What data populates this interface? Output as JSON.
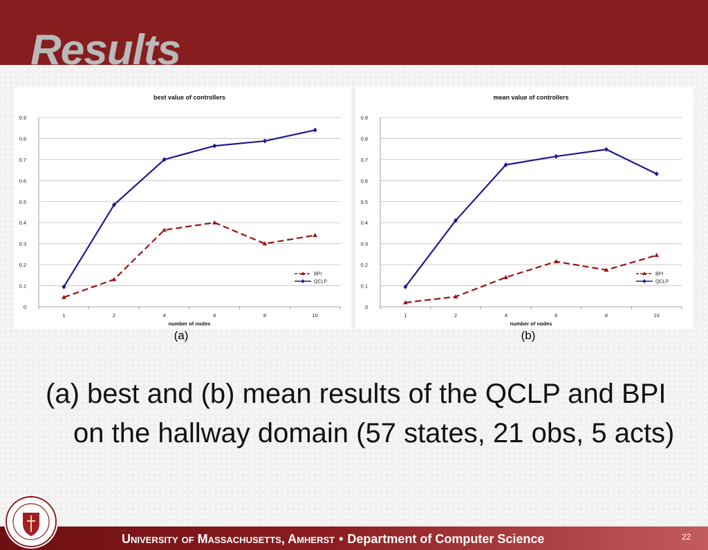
{
  "slide": {
    "title": "Results",
    "body_text": "(a) best and (b) mean results of the QCLP and BPI on the hallway domain (57 states, 21 obs, 5 acts)",
    "labels": [
      "(a)",
      "(b)"
    ],
    "footer": {
      "university": "University of Massachusetts, Amherst",
      "separator": "•",
      "department": "Department of Computer Science"
    },
    "page_number": "22",
    "seal_icon": "university-seal-icon"
  },
  "colors": {
    "header": "#861d1f",
    "title": "#b9b9b9",
    "bpi": "#9b1111",
    "qclp": "#1a1a8c"
  },
  "chart_data": [
    {
      "type": "line",
      "title": "best value of controllers",
      "xlabel": "number of nodes",
      "ylabel": "",
      "categories": [
        "1",
        "2",
        "4",
        "6",
        "8",
        "10"
      ],
      "ylim": [
        0,
        0.9
      ],
      "yticks": [
        "0",
        "0.1",
        "0.2",
        "0.3",
        "0.4",
        "0.5",
        "0.6",
        "0.7",
        "0.8",
        "0.9"
      ],
      "grid": true,
      "legend": "right",
      "series": [
        {
          "name": "BPI",
          "values": [
            0.045,
            0.13,
            0.365,
            0.4,
            0.3,
            0.34
          ],
          "color": "#9b1111",
          "dash": true,
          "marker": "triangle"
        },
        {
          "name": "QCLP",
          "values": [
            0.095,
            0.485,
            0.7,
            0.765,
            0.788,
            0.84
          ],
          "color": "#1a1a8c",
          "dash": false,
          "marker": "diamond"
        }
      ]
    },
    {
      "type": "line",
      "title": "mean value of controllers",
      "xlabel": "number of nodes",
      "ylabel": "",
      "categories": [
        "1",
        "2",
        "4",
        "6",
        "8",
        "10"
      ],
      "ylim": [
        0,
        0.9
      ],
      "yticks": [
        "0",
        "0.1",
        "0.2",
        "0.3",
        "0.4",
        "0.5",
        "0.6",
        "0.7",
        "0.8",
        "0.9"
      ],
      "grid": true,
      "legend": "right",
      "series": [
        {
          "name": "BPI",
          "values": [
            0.02,
            0.048,
            0.14,
            0.215,
            0.175,
            0.245
          ],
          "color": "#9b1111",
          "dash": true,
          "marker": "triangle"
        },
        {
          "name": "QCLP",
          "values": [
            0.095,
            0.41,
            0.675,
            0.715,
            0.748,
            0.632
          ],
          "color": "#1a1a8c",
          "dash": false,
          "marker": "diamond"
        }
      ]
    }
  ]
}
